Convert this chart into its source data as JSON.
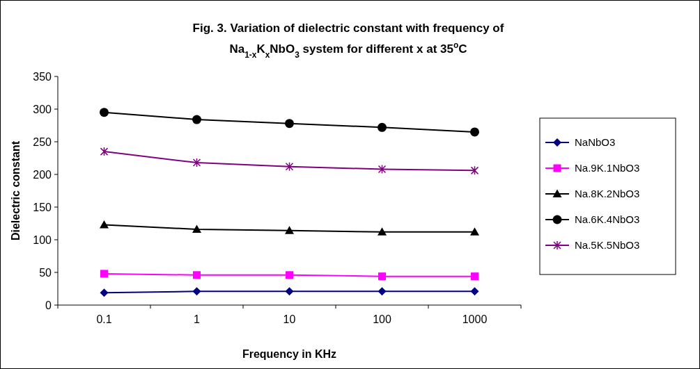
{
  "chart_data": {
    "type": "line",
    "title": "Fig. 3. Variation of dielectric constant with frequency of\nNa$_{1-x}$K$_{x}$NbO$_{3}$ system for different x at 35$^{o}$C",
    "xlabel": "Frequency in KHz",
    "ylabel": "Dielectric constant",
    "categories": [
      "0.1",
      "1",
      "10",
      "100",
      "1000"
    ],
    "ylim": [
      0,
      350
    ],
    "yticks": [
      0,
      50,
      100,
      150,
      200,
      250,
      300,
      350
    ],
    "grid": false,
    "legend": "right",
    "series": [
      {
        "name": "NaNbO3",
        "color": "#000080",
        "marker": "diamond",
        "values": [
          19,
          21,
          21,
          21,
          21
        ]
      },
      {
        "name": "Na.9K.1NbO3",
        "color": "#ff00ff",
        "marker": "square",
        "values": [
          48,
          46,
          46,
          44,
          44
        ]
      },
      {
        "name": "Na.8K.2NbO3",
        "color": "#000000",
        "marker": "triangle",
        "values": [
          123,
          116,
          114,
          112,
          112
        ]
      },
      {
        "name": "Na.6K.4NbO3",
        "color": "#000000",
        "marker": "circle",
        "values": [
          295,
          284,
          278,
          272,
          265
        ]
      },
      {
        "name": "Na.5K.5NbO3",
        "color": "#800080",
        "marker": "cross",
        "values": [
          235,
          218,
          212,
          208,
          206
        ]
      }
    ]
  }
}
